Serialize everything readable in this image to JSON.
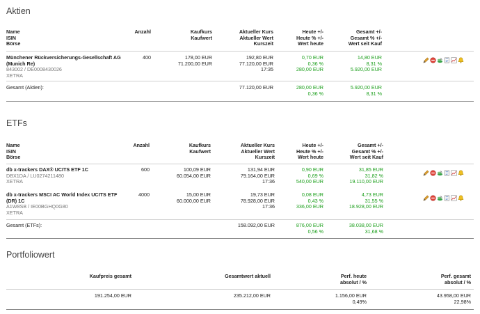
{
  "aktien": {
    "title": "Aktien",
    "headers": {
      "name": "Name",
      "isin": "ISIN",
      "boerse": "Börse",
      "anzahl": "Anzahl",
      "kaufkurs": "Kaufkurs",
      "kaufwert": "Kaufwert",
      "kurs": "Aktueller Kurs",
      "wert": "Aktueller Wert",
      "kurszeit": "Kurszeit",
      "heute": "Heute +/-",
      "heute_pct": "Heute % +/-",
      "wert_heute": "Wert heute",
      "gesamt": "Gesamt +/-",
      "gesamt_pct": "Gesamt % +/-",
      "seit_kauf": "Wert seit Kauf"
    },
    "rows": [
      {
        "name": "Münchener Rückversicherungs-Gesellschaft AG (Munich Re)",
        "isin": "843002 / DE0008430026",
        "boerse": "XETRA",
        "anzahl": "400",
        "kaufkurs": "178,00 EUR",
        "kaufwert": "71.200,00 EUR",
        "kurs": "192,80 EUR",
        "wert": "77.120,00 EUR",
        "kurszeit": "17:35",
        "heute": "0,70 EUR",
        "heute_pct": "0,36 %",
        "wert_heute": "280,00 EUR",
        "gesamt": "14,80 EUR",
        "gesamt_pct": "8,31 %",
        "seit_kauf": "5.920,00 EUR"
      }
    ],
    "total": {
      "label": "Gesamt (Aktien):",
      "wert": "77.120,00 EUR",
      "heute": "280,00 EUR",
      "heute_pct": "0,36 %",
      "gesamt": "5.920,00 EUR",
      "gesamt_pct": "8,31 %"
    }
  },
  "etfs": {
    "title": "ETFs",
    "headers": {
      "name": "Name",
      "isin": "ISIN",
      "boerse": "Börse",
      "anzahl": "Anzahl",
      "kaufkurs": "Kaufkurs",
      "kaufwert": "Kaufwert",
      "kurs": "Aktueller Kurs",
      "wert": "Aktueller Wert",
      "kurszeit": "Kurszeit",
      "heute": "Heute +/-",
      "heute_pct": "Heute % +/-",
      "wert_heute": "Wert heute",
      "gesamt": "Gesamt +/-",
      "gesamt_pct": "Gesamt % +/-",
      "seit_kauf": "Wert seit Kauf"
    },
    "rows": [
      {
        "name": "db x-trackers DAX® UCITS ETF 1C",
        "isin": "DBX1DA / LU0274211480",
        "boerse": "XETRA",
        "anzahl": "600",
        "kaufkurs": "100,09 EUR",
        "kaufwert": "60.054,00 EUR",
        "kurs": "131,94 EUR",
        "wert": "79.164,00 EUR",
        "kurszeit": "17:36",
        "heute": "0,90 EUR",
        "heute_pct": "0,69 %",
        "wert_heute": "540,00 EUR",
        "gesamt": "31,85 EUR",
        "gesamt_pct": "31,82 %",
        "seit_kauf": "19.110,00 EUR"
      },
      {
        "name": "db x-trackers MSCI AC World Index UCITS ETF (DR) 1C",
        "isin": "A1W8SB / IE00BGHQ0G80",
        "boerse": "XETRA",
        "anzahl": "4000",
        "kaufkurs": "15,00 EUR",
        "kaufwert": "60.000,00 EUR",
        "kurs": "19,73 EUR",
        "wert": "78.928,00 EUR",
        "kurszeit": "17:36",
        "heute": "0,08 EUR",
        "heute_pct": "0,43 %",
        "wert_heute": "336,00 EUR",
        "gesamt": "4,73 EUR",
        "gesamt_pct": "31,55 %",
        "seit_kauf": "18.928,00 EUR"
      }
    ],
    "total": {
      "label": "Gesamt (ETFs):",
      "wert": "158.092,00 EUR",
      "heute": "876,00 EUR",
      "heute_pct": "0,56 %",
      "gesamt": "38.038,00 EUR",
      "gesamt_pct": "31,68 %"
    }
  },
  "portfolio": {
    "title": "Portfoliowert",
    "headers": {
      "kaufpreis": "Kaufpreis gesamt",
      "gesamtwert": "Gesamtwert aktuell",
      "perf_heute_1": "Perf. heute",
      "perf_heute_2": "absolut / %",
      "perf_gesamt_1": "Perf. gesamt",
      "perf_gesamt_2": "absolut / %"
    },
    "values": {
      "kaufpreis": "191.254,00 EUR",
      "gesamtwert": "235.212,00 EUR",
      "perf_heute_abs": "1.156,00 EUR",
      "perf_heute_pct": "0,49%",
      "perf_gesamt_abs": "43.958,00 EUR",
      "perf_gesamt_pct": "22,98%"
    }
  },
  "row_actions": [
    "edit-icon",
    "delete-icon",
    "buy-sell-icon",
    "notes-icon",
    "chart-icon",
    "alert-icon"
  ]
}
